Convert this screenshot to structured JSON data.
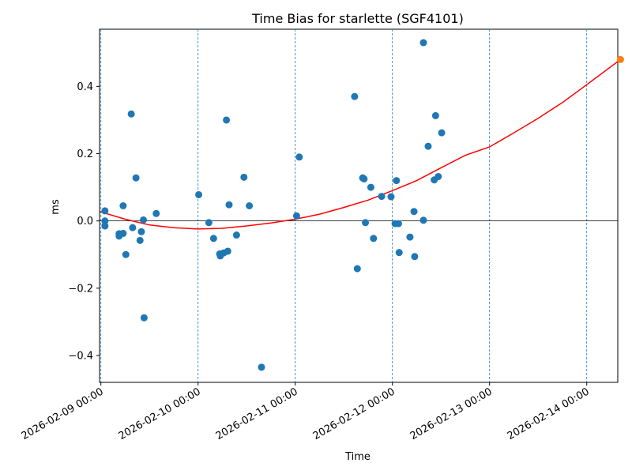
{
  "chart_data": {
    "type": "scatter",
    "title": "Time Bias for starlette (SGF4101)",
    "xlabel": "Time",
    "ylabel": "ms",
    "x_ticks": [
      "2026-02-09 00:00",
      "2026-02-10 00:00",
      "2026-02-11 00:00",
      "2026-02-12 00:00",
      "2026-02-13 00:00",
      "2026-02-14 00:00"
    ],
    "y_ticks": [
      "−0.4",
      "−0.2",
      "0.0",
      "0.2",
      "0.4"
    ],
    "xlim": [
      "2026-02-08 23:40",
      "2026-02-14 07:40"
    ],
    "ylim": [
      -0.48,
      0.57
    ],
    "zero_line": true,
    "vertical_day_lines": [
      "2026-02-09 00:00",
      "2026-02-10 00:00",
      "2026-02-11 00:00",
      "2026-02-12 00:00",
      "2026-02-13 00:00",
      "2026-02-14 00:00"
    ],
    "colors": {
      "points": "#1f77b4",
      "prediction": "#ff7f0e",
      "fit": "#ff0000",
      "day_lines": "#1f77b4"
    },
    "observed": [
      {
        "x": "2026-02-09 01:00",
        "y": 0.03
      },
      {
        "x": "2026-02-09 01:00",
        "y": 0.0
      },
      {
        "x": "2026-02-09 01:00",
        "y": -0.015
      },
      {
        "x": "2026-02-09 04:30",
        "y": -0.038
      },
      {
        "x": "2026-02-09 04:30",
        "y": -0.045
      },
      {
        "x": "2026-02-09 05:30",
        "y": 0.045
      },
      {
        "x": "2026-02-09 05:30",
        "y": -0.037
      },
      {
        "x": "2026-02-09 06:10",
        "y": -0.1
      },
      {
        "x": "2026-02-09 07:30",
        "y": 0.318
      },
      {
        "x": "2026-02-09 07:50",
        "y": -0.02
      },
      {
        "x": "2026-02-09 08:40",
        "y": 0.128
      },
      {
        "x": "2026-02-09 09:40",
        "y": -0.058
      },
      {
        "x": "2026-02-09 10:00",
        "y": -0.032
      },
      {
        "x": "2026-02-09 10:30",
        "y": 0.003
      },
      {
        "x": "2026-02-09 10:40",
        "y": -0.288
      },
      {
        "x": "2026-02-09 13:40",
        "y": 0.022
      },
      {
        "x": "2026-02-10 00:10",
        "y": 0.078
      },
      {
        "x": "2026-02-10 02:40",
        "y": -0.005
      },
      {
        "x": "2026-02-10 03:50",
        "y": -0.052
      },
      {
        "x": "2026-02-10 05:20",
        "y": -0.098
      },
      {
        "x": "2026-02-10 05:30",
        "y": -0.104
      },
      {
        "x": "2026-02-10 06:20",
        "y": -0.095
      },
      {
        "x": "2026-02-10 07:20",
        "y": -0.09
      },
      {
        "x": "2026-02-10 07:40",
        "y": 0.048
      },
      {
        "x": "2026-02-10 07:00",
        "y": 0.3
      },
      {
        "x": "2026-02-10 09:30",
        "y": -0.042
      },
      {
        "x": "2026-02-10 11:20",
        "y": 0.13
      },
      {
        "x": "2026-02-10 12:40",
        "y": 0.045
      },
      {
        "x": "2026-02-10 15:40",
        "y": -0.435
      },
      {
        "x": "2026-02-11 00:20",
        "y": 0.015
      },
      {
        "x": "2026-02-11 01:00",
        "y": 0.19
      },
      {
        "x": "2026-02-11 14:40",
        "y": 0.37
      },
      {
        "x": "2026-02-11 16:40",
        "y": 0.128
      },
      {
        "x": "2026-02-11 17:00",
        "y": 0.125
      },
      {
        "x": "2026-02-11 17:20",
        "y": -0.005
      },
      {
        "x": "2026-02-11 15:20",
        "y": -0.142
      },
      {
        "x": "2026-02-11 18:40",
        "y": 0.1
      },
      {
        "x": "2026-02-11 19:20",
        "y": -0.052
      },
      {
        "x": "2026-02-11 21:20",
        "y": 0.073
      },
      {
        "x": "2026-02-11 23:40",
        "y": 0.072
      },
      {
        "x": "2026-02-12 00:40",
        "y": -0.008
      },
      {
        "x": "2026-02-12 01:00",
        "y": 0.12
      },
      {
        "x": "2026-02-12 01:30",
        "y": -0.008
      },
      {
        "x": "2026-02-12 01:40",
        "y": -0.094
      },
      {
        "x": "2026-02-12 04:20",
        "y": -0.048
      },
      {
        "x": "2026-02-12 05:20",
        "y": 0.028
      },
      {
        "x": "2026-02-12 05:30",
        "y": -0.106
      },
      {
        "x": "2026-02-12 07:40",
        "y": 0.53
      },
      {
        "x": "2026-02-12 08:50",
        "y": 0.222
      },
      {
        "x": "2026-02-12 10:20",
        "y": 0.122
      },
      {
        "x": "2026-02-12 10:40",
        "y": 0.313
      },
      {
        "x": "2026-02-12 11:20",
        "y": 0.132
      },
      {
        "x": "2026-02-12 12:10",
        "y": 0.262
      },
      {
        "x": "2026-02-12 07:40",
        "y": 0.002
      }
    ],
    "predicted": [
      {
        "x": "2026-02-14 08:20",
        "y": 0.48
      }
    ],
    "fit_curve": [
      {
        "x": "2026-02-08 23:40",
        "y": 0.028
      },
      {
        "x": "2026-02-09 06:00",
        "y": 0.005
      },
      {
        "x": "2026-02-09 12:00",
        "y": -0.012
      },
      {
        "x": "2026-02-09 18:00",
        "y": -0.02
      },
      {
        "x": "2026-02-10 00:00",
        "y": -0.024
      },
      {
        "x": "2026-02-10 06:00",
        "y": -0.022
      },
      {
        "x": "2026-02-10 12:00",
        "y": -0.015
      },
      {
        "x": "2026-02-10 18:00",
        "y": -0.006
      },
      {
        "x": "2026-02-11 00:00",
        "y": 0.005
      },
      {
        "x": "2026-02-11 06:00",
        "y": 0.02
      },
      {
        "x": "2026-02-11 12:00",
        "y": 0.04
      },
      {
        "x": "2026-02-11 18:00",
        "y": 0.062
      },
      {
        "x": "2026-02-12 00:00",
        "y": 0.09
      },
      {
        "x": "2026-02-12 06:00",
        "y": 0.12
      },
      {
        "x": "2026-02-12 12:00",
        "y": 0.158
      },
      {
        "x": "2026-02-12 18:00",
        "y": 0.195
      },
      {
        "x": "2026-02-13 00:00",
        "y": 0.22
      },
      {
        "x": "2026-02-13 06:00",
        "y": 0.262
      },
      {
        "x": "2026-02-13 12:00",
        "y": 0.305
      },
      {
        "x": "2026-02-13 18:00",
        "y": 0.352
      },
      {
        "x": "2026-02-14 00:00",
        "y": 0.405
      },
      {
        "x": "2026-02-14 08:20",
        "y": 0.48
      }
    ]
  }
}
